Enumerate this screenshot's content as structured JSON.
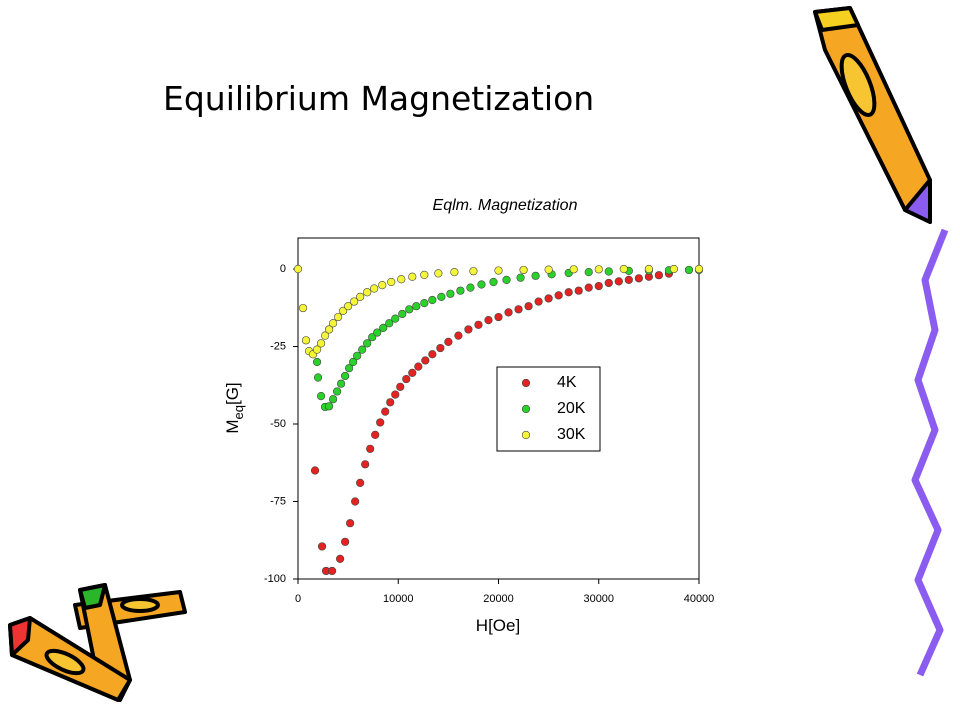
{
  "slide_title": "Equilibrium Magnetization",
  "chart_data": {
    "type": "scatter",
    "title": "Eqlm. Magnetization",
    "x_label": "H[Oe]",
    "y_label_parts": [
      "M",
      "eq",
      "[G]"
    ],
    "xlim": [
      0,
      40000
    ],
    "ylim": [
      -100,
      10
    ],
    "xticks": [
      0,
      10000,
      20000,
      30000,
      40000
    ],
    "yticks": [
      0,
      -25,
      -50,
      -75,
      -100
    ],
    "series": [
      {
        "name": "4K",
        "color": "#e32222",
        "x": [
          1700,
          2400,
          2800,
          3400,
          4200,
          4700,
          5200,
          5700,
          6200,
          6700,
          7200,
          7700,
          8200,
          8700,
          9200,
          9700,
          10200,
          10800,
          11400,
          12000,
          12700,
          13400,
          14200,
          15000,
          16000,
          17000,
          18000,
          19000,
          20000,
          21000,
          22000,
          23000,
          24000,
          25000,
          26000,
          27000,
          28000,
          29000,
          30000,
          31000,
          32000,
          33000,
          34000,
          35000,
          36000,
          37000
        ],
        "values": [
          -65,
          -89.5,
          -97.4,
          -97.4,
          -93.5,
          -88,
          -82,
          -75,
          -69,
          -63,
          -58,
          -53.5,
          -49.5,
          -46,
          -43,
          -40.5,
          -38,
          -35.5,
          -33.5,
          -31.5,
          -29.5,
          -27.5,
          -25.5,
          -23.5,
          -21.5,
          -19.5,
          -18,
          -16.5,
          -15.5,
          -14,
          -13,
          -12,
          -10.5,
          -9.5,
          -8.5,
          -7.5,
          -7,
          -6,
          -5.5,
          -4.5,
          -4,
          -3.5,
          -3,
          -2.5,
          -2,
          -1.5
        ]
      },
      {
        "name": "20K",
        "color": "#2ad12a",
        "x": [
          1900,
          2000,
          2300,
          2700,
          3100,
          3500,
          3900,
          4300,
          4700,
          5100,
          5500,
          5900,
          6400,
          6900,
          7400,
          7900,
          8500,
          9100,
          9700,
          10400,
          11100,
          11800,
          12600,
          13400,
          14300,
          15200,
          16200,
          17200,
          18300,
          19500,
          20800,
          22200,
          23700,
          25300,
          27000,
          29000,
          31000,
          33000,
          35000,
          37000,
          39000,
          40000
        ],
        "values": [
          -30,
          -35,
          -41,
          -44.5,
          -44.3,
          -42,
          -39.5,
          -37,
          -34.5,
          -32,
          -30,
          -28,
          -26,
          -24,
          -22,
          -20.5,
          -19,
          -17.5,
          -16,
          -14.5,
          -13,
          -12,
          -11,
          -10,
          -9,
          -8,
          -7,
          -6,
          -5,
          -4.2,
          -3.5,
          -2.8,
          -2.2,
          -1.7,
          -1.3,
          -1,
          -0.8,
          -0.6,
          -0.5,
          -0.4,
          -0.3,
          -0.3
        ]
      },
      {
        "name": "30K",
        "color": "#f4f43a",
        "x": [
          0,
          500,
          800,
          1100,
          1500,
          1900,
          2300,
          2700,
          3100,
          3500,
          4000,
          4500,
          5000,
          5600,
          6200,
          6900,
          7600,
          8400,
          9300,
          10300,
          11400,
          12600,
          14000,
          15600,
          17500,
          20000,
          22500,
          25000,
          27500,
          30000,
          32500,
          35000,
          37500,
          40000
        ],
        "values": [
          0,
          -12.6,
          -23,
          -26.5,
          -27.5,
          -26,
          -24,
          -21.5,
          -19.5,
          -17.5,
          -15.5,
          -13.5,
          -12,
          -10.5,
          -9,
          -7.5,
          -6.3,
          -5.2,
          -4.2,
          -3.3,
          -2.5,
          -1.9,
          -1.4,
          -1,
          -0.7,
          -0.5,
          -0.3,
          -0.2,
          -0.1,
          -0.1,
          0,
          0,
          0,
          0
        ]
      }
    ]
  }
}
